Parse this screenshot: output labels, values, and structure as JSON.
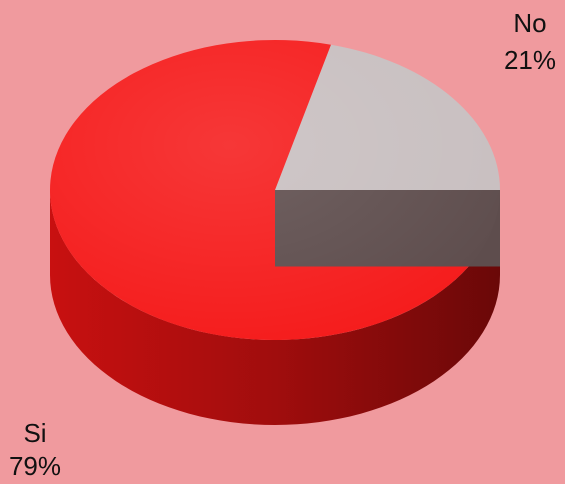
{
  "chart_data": {
    "type": "pie",
    "categories": [
      "No",
      "Si"
    ],
    "values": [
      21,
      79
    ],
    "value_labels": [
      "21%",
      "79%"
    ],
    "colors": [
      "#c8bfc0",
      "#f51c1c"
    ]
  }
}
